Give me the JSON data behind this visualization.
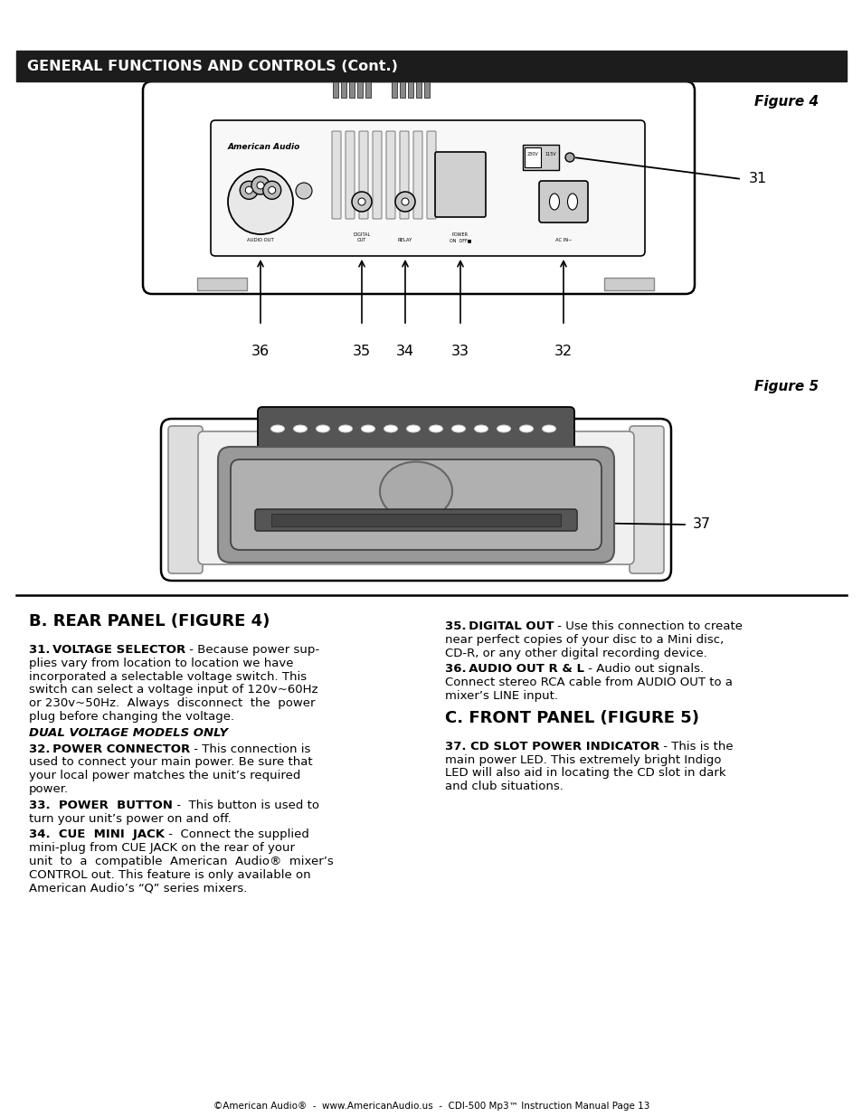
{
  "title": "GENERAL FUNCTIONS AND CONTROLS (Cont.)",
  "figure4_label": "Figure 4",
  "figure5_label": "Figure 5",
  "section_b_title": "B. REAR PANEL (FIGURE 4)",
  "section_c_title": "C. FRONT PANEL (FIGURE 5)",
  "footer": "©American Audio®  -  www.AmericanAudio.us  -  CDI-500 Mp3™ Instruction Manual Page 13",
  "left_paragraphs": [
    {
      "bold": "31. VOLTAGE SELECTOR",
      "normal": " - Because power sup-\nplies vary from location to location we have\nincorporated a selectable voltage switch. This\nswitch can select a voltage input of 120v~60Hz\nor 230v~50Hz.  Always  disconnect  the  power\nplug before changing the voltage.",
      "italic": false
    },
    {
      "bold": "DUAL VOLTAGE MODELS ONLY",
      "normal": "",
      "italic": true,
      "alone": true
    },
    {
      "bold": "32. POWER CONNECTOR",
      "normal": " - This connection is\nused to connect your main power. Be sure that\nyour local power matches the unit’s required\npower.",
      "italic": false
    },
    {
      "bold": "33.  POWER  BUTTON",
      "normal": " -  This button is used to\nturn your unit’s power on and off.",
      "italic": false
    },
    {
      "bold": "34.  CUE  MINI  JACK",
      "normal": " -  Connect the supplied\nmini-plug from CUE JACK on the rear of your\nunit  to  a  compatible  American  Audio®  mixer’s\nCONTROL out. This feature is only available on\nAmerican Audio’s “Q” series mixers.",
      "italic": false
    }
  ],
  "right_paragraphs": [
    {
      "bold": "35. DIGITAL OUT",
      "normal": " - Use this connection to create\nnear perfect copies of your disc to a Mini disc,\nCD-R, or any other digital recording device.",
      "italic": false
    },
    {
      "bold": "36. AUDIO OUT R & L",
      "normal": " - Audio out signals.\nConnect stereo RCA cable from AUDIO OUT to a\nmixer’s LINE input.",
      "italic": false
    }
  ],
  "section_c_paragraphs": [
    {
      "bold": "37. CD SLOT POWER INDICATOR",
      "normal": " - This is the\nmain power LED. This extremely bright Indigo\nLED will also aid in locating the CD slot in dark\nand club situations.",
      "italic": false
    }
  ]
}
